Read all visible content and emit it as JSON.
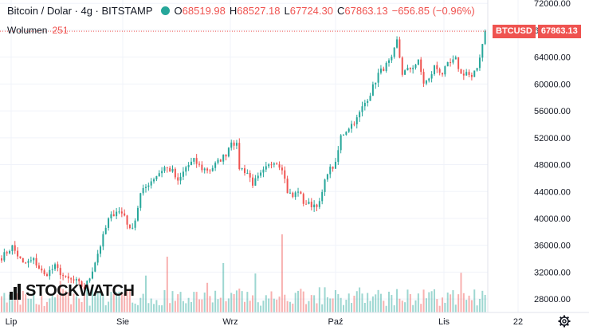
{
  "header": {
    "title": "Bitcoin / Dolar · 4g · BITSTAMP",
    "open_label": "O",
    "open": "68519.98",
    "high_label": "H",
    "high": "68527.18",
    "low_label": "L",
    "low": "67724.30",
    "close_label": "C",
    "close": "67863.13",
    "change": "−656.85 (−0.96%)"
  },
  "volume": {
    "label": "Wolumen",
    "value": "251"
  },
  "price_tag": {
    "symbol": "BTCUSD",
    "price": "67863.13"
  },
  "watermark": "STOCKWATCH",
  "colors": {
    "up": "#26a69a",
    "down": "#ef5350",
    "grid": "#f0f3fa"
  },
  "icons": {
    "settings": "gear-icon"
  },
  "chart_data": {
    "type": "candlestick",
    "y_ticks": [
      "72000.00",
      "68000.00",
      "64000.00",
      "60000.00",
      "56000.00",
      "52000.00",
      "48000.00",
      "44000.00",
      "40000.00",
      "36000.00",
      "32000.00",
      "28000.00"
    ],
    "x_ticks": [
      "Lip",
      "Sie",
      "Wrz",
      "Paź",
      "Lis",
      "22"
    ],
    "ylim": [
      26000,
      72500
    ],
    "last_price": 67863.13,
    "close_path": [
      [
        0,
        34200
      ],
      [
        4,
        35800
      ],
      [
        8,
        33200
      ],
      [
        12,
        33800
      ],
      [
        16,
        31500
      ],
      [
        20,
        32800
      ],
      [
        24,
        31000
      ],
      [
        28,
        30600
      ],
      [
        31,
        29600
      ],
      [
        33,
        31200
      ],
      [
        37,
        36000
      ],
      [
        40,
        39800
      ],
      [
        43,
        41200
      ],
      [
        46,
        40500
      ],
      [
        48,
        38200
      ],
      [
        50,
        39800
      ],
      [
        52,
        43600
      ],
      [
        55,
        45200
      ],
      [
        58,
        46400
      ],
      [
        61,
        47600
      ],
      [
        64,
        47000
      ],
      [
        66,
        45300
      ],
      [
        69,
        47600
      ],
      [
        72,
        48600
      ],
      [
        75,
        47400
      ],
      [
        78,
        47200
      ],
      [
        81,
        48400
      ],
      [
        84,
        49600
      ],
      [
        86,
        51600
      ],
      [
        88,
        50800
      ],
      [
        89,
        47600
      ],
      [
        92,
        46800
      ],
      [
        94,
        45200
      ],
      [
        96,
        46000
      ],
      [
        99,
        47400
      ],
      [
        102,
        48600
      ],
      [
        105,
        47600
      ],
      [
        107,
        44000
      ],
      [
        109,
        43200
      ],
      [
        111,
        44200
      ],
      [
        113,
        42400
      ],
      [
        116,
        42000
      ],
      [
        119,
        42200
      ],
      [
        122,
        47000
      ],
      [
        125,
        48000
      ],
      [
        127,
        52200
      ],
      [
        130,
        53600
      ],
      [
        133,
        54800
      ],
      [
        135,
        56500
      ],
      [
        138,
        58600
      ],
      [
        141,
        61500
      ],
      [
        144,
        62800
      ],
      [
        146,
        63600
      ],
      [
        148,
        66400
      ],
      [
        150,
        61600
      ],
      [
        153,
        62300
      ],
      [
        156,
        63300
      ],
      [
        158,
        60200
      ],
      [
        160,
        60600
      ],
      [
        162,
        62600
      ],
      [
        165,
        61600
      ],
      [
        167,
        62800
      ],
      [
        170,
        63600
      ],
      [
        172,
        61400
      ],
      [
        174,
        61800
      ],
      [
        176,
        60800
      ],
      [
        178,
        62400
      ],
      [
        180,
        66000
      ],
      [
        181,
        67800
      ]
    ],
    "n_candles": 182,
    "volume_max": 37000
  }
}
